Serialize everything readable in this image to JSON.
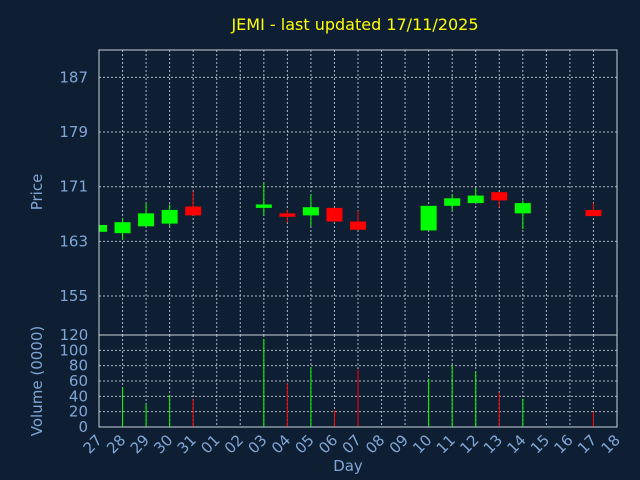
{
  "chart_data": {
    "type": "candlestick",
    "title": "JEMI - last updated 17/11/2025",
    "xlabel": "Day",
    "price_panel": {
      "ylabel": "Price",
      "yticks": [
        155,
        163,
        171,
        179,
        187
      ],
      "ylim": [
        149.3,
        191.0
      ]
    },
    "volume_panel": {
      "ylabel": "Volume (0000)",
      "yticks": [
        0,
        20,
        40,
        60,
        80,
        100
      ],
      "ylim": [
        0,
        120
      ],
      "top_label": "120"
    },
    "days": [
      "27",
      "28",
      "29",
      "30",
      "31",
      "01",
      "02",
      "03",
      "04",
      "05",
      "06",
      "07",
      "08",
      "09",
      "10",
      "11",
      "12",
      "13",
      "14",
      "15",
      "16",
      "17",
      "18"
    ],
    "colors": {
      "up": "#00ff00",
      "down": "#ff0000",
      "background": "#0f1f33",
      "grid": "#c8d0d8",
      "title": "#ffff00",
      "text": "#7ea6d6"
    },
    "candles": [
      {
        "day": "27",
        "open": 164.4,
        "close": 165.4,
        "high": 165.4,
        "low": 164.4,
        "volume": 0
      },
      {
        "day": "28",
        "open": 164.2,
        "close": 165.8,
        "high": 166.4,
        "low": 163.2,
        "volume": 52
      },
      {
        "day": "29",
        "open": 165.2,
        "close": 167.1,
        "high": 168.6,
        "low": 165.2,
        "volume": 30
      },
      {
        "day": "30",
        "open": 165.6,
        "close": 167.6,
        "high": 168.4,
        "low": 165.2,
        "volume": 42
      },
      {
        "day": "31",
        "open": 168.1,
        "close": 166.8,
        "high": 170.3,
        "low": 166.8,
        "volume": 36
      },
      {
        "day": "03",
        "open": 167.9,
        "close": 168.4,
        "high": 171.5,
        "low": 166.8,
        "volume": 115
      },
      {
        "day": "04",
        "open": 167.1,
        "close": 166.6,
        "high": 167.6,
        "low": 165.8,
        "volume": 57
      },
      {
        "day": "05",
        "open": 166.8,
        "close": 168.0,
        "high": 169.8,
        "low": 165.2,
        "volume": 78
      },
      {
        "day": "06",
        "open": 167.9,
        "close": 165.9,
        "high": 167.9,
        "low": 165.9,
        "volume": 22
      },
      {
        "day": "07",
        "open": 165.9,
        "close": 164.7,
        "high": 167.5,
        "low": 164.7,
        "volume": 75
      },
      {
        "day": "10",
        "open": 164.6,
        "close": 168.2,
        "high": 168.2,
        "low": 164.6,
        "volume": 63
      },
      {
        "day": "11",
        "open": 168.2,
        "close": 169.3,
        "high": 169.9,
        "low": 167.5,
        "volume": 80
      },
      {
        "day": "12",
        "open": 168.6,
        "close": 169.7,
        "high": 170.8,
        "low": 168.6,
        "volume": 72
      },
      {
        "day": "13",
        "open": 170.2,
        "close": 169.0,
        "high": 170.2,
        "low": 168.0,
        "volume": 45
      },
      {
        "day": "14",
        "open": 167.1,
        "close": 168.6,
        "high": 169.0,
        "low": 164.8,
        "volume": 37
      },
      {
        "day": "17",
        "open": 167.6,
        "close": 166.7,
        "high": 168.6,
        "low": 166.7,
        "volume": 20
      }
    ]
  }
}
